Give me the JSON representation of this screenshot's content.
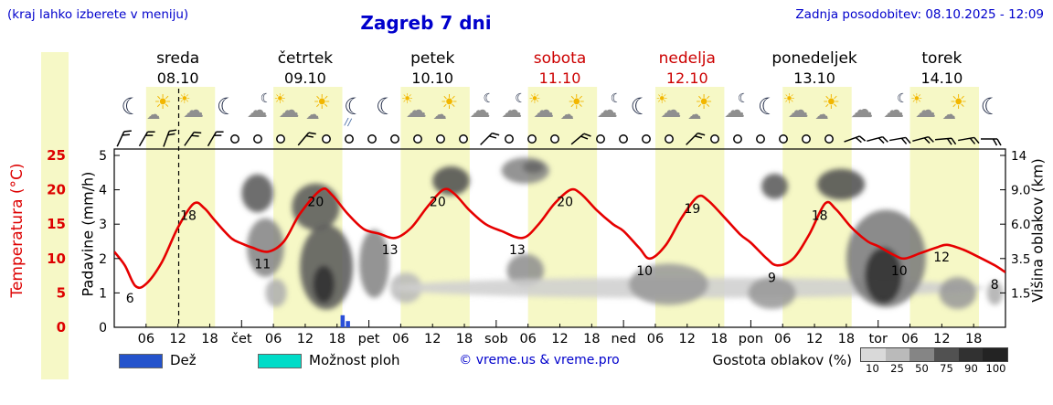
{
  "header": {
    "hint": "(kraj lahko izberete v meniju)",
    "title": "Zagreb 7 dni",
    "updated": "Zadnja posodobitev: 08.10.2025 - 12:09"
  },
  "days": [
    {
      "name": "sreda",
      "date": "08.10",
      "color": "#000000"
    },
    {
      "name": "četrtek",
      "date": "09.10",
      "color": "#000000"
    },
    {
      "name": "petek",
      "date": "10.10",
      "color": "#000000"
    },
    {
      "name": "sobota",
      "date": "11.10",
      "color": "#cc0000"
    },
    {
      "name": "nedelja",
      "date": "12.10",
      "color": "#cc0000"
    },
    {
      "name": "ponedeljek",
      "date": "13.10",
      "color": "#000000"
    },
    {
      "name": "torek",
      "date": "14.10",
      "color": "#000000"
    }
  ],
  "axes": {
    "temp_label": "Temperatura (°C)",
    "temp_ticks": [
      0,
      5,
      10,
      15,
      20,
      25
    ],
    "precip_label": "Padavine (mm/h)",
    "precip_ticks": [
      0,
      1,
      2,
      3,
      4,
      5
    ],
    "cloud_label": "Višina oblakov (km)",
    "cloud_ticks": [
      "1.5",
      "3.5",
      "6.0",
      "9.0",
      "14"
    ],
    "time_ticks": [
      "06",
      "12",
      "18",
      "čet",
      "06",
      "12",
      "18",
      "pet",
      "06",
      "12",
      "18",
      "sob",
      "06",
      "12",
      "18",
      "ned",
      "06",
      "12",
      "18",
      "pon",
      "06",
      "12",
      "18",
      "tor",
      "06",
      "12",
      "18"
    ]
  },
  "icons": [
    "moon",
    "sun-cloud",
    "cloud-sun",
    "moon",
    "cloud-moon",
    "cloud-sun",
    "sun-cloud",
    "moon-rain",
    "moon",
    "cloud-sun",
    "sun-cloud",
    "cloud-moon",
    "cloud-moon",
    "cloud-sun",
    "sun-cloud",
    "cloud-moon",
    "moon",
    "cloud-sun",
    "sun-cloud",
    "cloud-moon",
    "moon",
    "cloud-sun",
    "sun-cloud",
    "cloud",
    "cloud-moon",
    "cloud-sun",
    "sun-cloud",
    "moon"
  ],
  "wind": [
    {
      "type": "barb",
      "dir": 25
    },
    {
      "type": "barb",
      "dir": 30
    },
    {
      "type": "barb",
      "dir": 20
    },
    {
      "type": "barb",
      "dir": 35
    },
    {
      "type": "barb",
      "dir": 30
    },
    {
      "type": "calm"
    },
    {
      "type": "calm"
    },
    {
      "type": "calm"
    },
    {
      "type": "barb",
      "dir": 40
    },
    {
      "type": "calm"
    },
    {
      "type": "calm"
    },
    {
      "type": "calm"
    },
    {
      "type": "calm"
    },
    {
      "type": "calm"
    },
    {
      "type": "calm"
    },
    {
      "type": "calm"
    },
    {
      "type": "barb",
      "dir": 45
    },
    {
      "type": "calm"
    },
    {
      "type": "calm"
    },
    {
      "type": "calm"
    },
    {
      "type": "barb",
      "dir": 50
    },
    {
      "type": "calm"
    },
    {
      "type": "calm"
    },
    {
      "type": "calm"
    },
    {
      "type": "calm"
    },
    {
      "type": "barb",
      "dir": 45
    },
    {
      "type": "calm"
    },
    {
      "type": "calm"
    },
    {
      "type": "calm"
    },
    {
      "type": "calm"
    },
    {
      "type": "calm"
    },
    {
      "type": "calm"
    },
    {
      "type": "barb",
      "dir": 70
    },
    {
      "type": "barb",
      "dir": 75
    },
    {
      "type": "barb",
      "dir": 80
    },
    {
      "type": "barb",
      "dir": 75
    },
    {
      "type": "barb",
      "dir": 85
    },
    {
      "type": "barb",
      "dir": 80
    },
    {
      "type": "barb",
      "dir": 90
    }
  ],
  "legend": {
    "rain": "Dež",
    "showers": "Možnost ploh",
    "copyright": "© vreme.us & vreme.pro",
    "cloud_density": "Gostota oblakov (%)",
    "density_ticks": [
      10,
      25,
      50,
      75,
      90,
      100
    ],
    "rain_color": "#2453cc",
    "showers_color": "#00dcc8"
  },
  "chart_data": {
    "type": "line",
    "title": "Zagreb 7 dni",
    "x_axis": {
      "unit": "hours from 08.10 00:00",
      "range": [
        0,
        168
      ],
      "tick_hours": [
        6,
        12,
        18,
        24,
        30,
        36,
        42,
        48,
        54,
        60,
        66,
        72,
        78,
        84,
        90,
        96,
        102,
        108,
        114,
        120,
        126,
        132,
        138,
        144,
        150,
        156,
        162
      ]
    },
    "day_bands": {
      "day_start_hour": 6,
      "day_end_hour": 19,
      "color": "#f6f8c6"
    },
    "now_line_hour": 12.15,
    "temperature": {
      "unit": "°C",
      "color": "#e60000",
      "axis_range": [
        0,
        25
      ],
      "points": [
        [
          0,
          11
        ],
        [
          2,
          9
        ],
        [
          4,
          6
        ],
        [
          6,
          6.3
        ],
        [
          9,
          9.5
        ],
        [
          12,
          14.5
        ],
        [
          15,
          18
        ],
        [
          17,
          17.3
        ],
        [
          19,
          15.5
        ],
        [
          22,
          13
        ],
        [
          24,
          12.2
        ],
        [
          26,
          11.6
        ],
        [
          29,
          11
        ],
        [
          32,
          12.5
        ],
        [
          35,
          16.5
        ],
        [
          39,
          20
        ],
        [
          41,
          19.3
        ],
        [
          44,
          16.5
        ],
        [
          47,
          14.3
        ],
        [
          50,
          13.6
        ],
        [
          53,
          13
        ],
        [
          56,
          14.5
        ],
        [
          59,
          17.5
        ],
        [
          62,
          20
        ],
        [
          64,
          19.5
        ],
        [
          67,
          17
        ],
        [
          70,
          15
        ],
        [
          73,
          14
        ],
        [
          77,
          13
        ],
        [
          80,
          15
        ],
        [
          83,
          18
        ],
        [
          86,
          20
        ],
        [
          88,
          19.4
        ],
        [
          91,
          17
        ],
        [
          94,
          15
        ],
        [
          96,
          14
        ],
        [
          99,
          11.5
        ],
        [
          101,
          10
        ],
        [
          104,
          12
        ],
        [
          107,
          16
        ],
        [
          110,
          19
        ],
        [
          112,
          18.4
        ],
        [
          115,
          16
        ],
        [
          118,
          13.5
        ],
        [
          120,
          12.3
        ],
        [
          123,
          10
        ],
        [
          125,
          9
        ],
        [
          128,
          10
        ],
        [
          131,
          13.5
        ],
        [
          134,
          18
        ],
        [
          136,
          17.2
        ],
        [
          139,
          14.5
        ],
        [
          142,
          12.5
        ],
        [
          144,
          11.8
        ],
        [
          147,
          10.5
        ],
        [
          149,
          10
        ],
        [
          152,
          10.8
        ],
        [
          155,
          11.6
        ],
        [
          157,
          12
        ],
        [
          160,
          11.3
        ],
        [
          163,
          10.2
        ],
        [
          166,
          9
        ],
        [
          168,
          8
        ]
      ],
      "point_labels": [
        [
          4,
          6
        ],
        [
          15,
          18
        ],
        [
          29,
          11
        ],
        [
          39,
          20
        ],
        [
          53,
          13
        ],
        [
          62,
          20
        ],
        [
          77,
          13
        ],
        [
          86,
          20
        ],
        [
          101,
          10
        ],
        [
          110,
          19
        ],
        [
          125,
          9
        ],
        [
          134,
          18
        ],
        [
          149,
          10
        ],
        [
          157,
          12
        ],
        [
          167,
          8
        ]
      ]
    },
    "precipitation": {
      "unit": "mm/h",
      "axis_range": [
        0,
        5
      ],
      "color": "#2b4fd8",
      "bars": [
        [
          43,
          0.35
        ],
        [
          44,
          0.18
        ]
      ]
    },
    "cloud_cover": {
      "altitude_unit": "km",
      "density_unit": "%",
      "right_axis_ticks": [
        1.5,
        3.5,
        6,
        9,
        14
      ],
      "density_scale_pct": [
        10,
        25,
        50,
        75,
        90,
        100
      ],
      "blobs": [
        [
          27,
          8.7,
          3,
          2,
          70
        ],
        [
          28.5,
          4.3,
          3.5,
          2,
          50
        ],
        [
          30.5,
          1.5,
          2,
          0.7,
          30
        ],
        [
          38,
          7.5,
          4.5,
          2.1,
          70
        ],
        [
          40,
          3,
          5,
          2.5,
          70
        ],
        [
          39.5,
          2,
          2,
          1,
          90
        ],
        [
          49,
          3.2,
          2.8,
          2.1,
          50
        ],
        [
          55,
          1.8,
          3,
          0.8,
          25
        ],
        [
          63.5,
          10.3,
          3.5,
          1.9,
          75
        ],
        [
          77.5,
          11.8,
          4.5,
          1.9,
          50
        ],
        [
          79,
          12.3,
          2,
          0.9,
          65
        ],
        [
          77.5,
          2.8,
          3.5,
          1,
          45
        ],
        [
          108,
          1.8,
          56,
          0.55,
          15
        ],
        [
          104.5,
          2,
          7.5,
          1.1,
          40
        ],
        [
          124,
          1.5,
          4.5,
          0.8,
          40
        ],
        [
          124.5,
          9.5,
          2.5,
          1.5,
          70
        ],
        [
          137,
          9.8,
          4.5,
          1.9,
          75
        ],
        [
          145.5,
          3.5,
          7.5,
          3,
          55
        ],
        [
          145,
          2.5,
          3.5,
          1.6,
          90
        ],
        [
          159,
          1.5,
          3.5,
          0.8,
          40
        ],
        [
          166,
          1.5,
          1.5,
          0.6,
          30
        ]
      ]
    }
  }
}
